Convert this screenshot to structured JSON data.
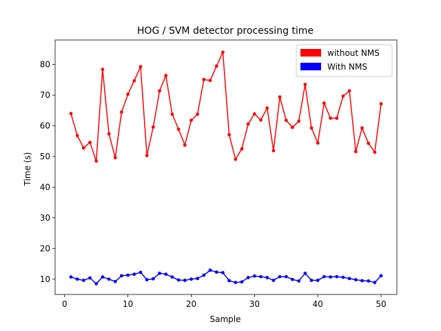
{
  "chart_data": {
    "type": "line",
    "title": "HOG / SVM detector processing time",
    "xlabel": "Sample",
    "ylabel": "Time (s)",
    "xlim": [
      -1.5,
      52.5
    ],
    "ylim": [
      5,
      88
    ],
    "xticks": [
      0,
      10,
      20,
      30,
      40,
      50
    ],
    "yticks": [
      10,
      20,
      30,
      40,
      50,
      60,
      70,
      80
    ],
    "legend_position": "top-right",
    "x": [
      1,
      2,
      3,
      4,
      5,
      6,
      7,
      8,
      9,
      10,
      11,
      12,
      13,
      14,
      15,
      16,
      17,
      18,
      19,
      20,
      21,
      22,
      23,
      24,
      25,
      26,
      27,
      28,
      29,
      30,
      31,
      32,
      33,
      34,
      35,
      36,
      37,
      38,
      39,
      40,
      41,
      42,
      43,
      44,
      45,
      46,
      47,
      48,
      49,
      50
    ],
    "series": [
      {
        "name": "without NMS",
        "color": "#ff0000",
        "values": [
          64.0,
          56.8,
          52.8,
          54.6,
          48.5,
          78.4,
          57.4,
          49.6,
          64.5,
          70.3,
          74.7,
          79.3,
          50.3,
          59.6,
          71.4,
          76.4,
          63.8,
          58.9,
          53.7,
          61.8,
          63.8,
          75.1,
          74.8,
          79.5,
          84.0,
          57.1,
          49.1,
          52.5,
          60.6,
          63.9,
          61.9,
          65.8,
          51.9,
          69.4,
          61.8,
          59.5,
          61.5,
          73.5,
          59.3,
          54.4,
          67.4,
          62.5,
          62.5,
          69.7,
          71.4,
          51.6,
          59.3,
          54.3,
          51.4,
          67.2
        ]
      },
      {
        "name": "With NMS",
        "color": "#0000ff",
        "values": [
          10.7,
          10.0,
          9.6,
          10.4,
          8.5,
          10.7,
          10.0,
          9.2,
          11.1,
          11.3,
          11.6,
          12.2,
          9.8,
          10.1,
          11.9,
          11.6,
          10.7,
          9.7,
          9.6,
          10.0,
          10.2,
          11.3,
          12.9,
          12.3,
          12.1,
          9.5,
          8.9,
          9.1,
          10.5,
          11.0,
          10.8,
          10.5,
          9.6,
          10.8,
          10.8,
          9.9,
          9.4,
          11.9,
          9.6,
          9.6,
          10.8,
          10.7,
          10.8,
          10.6,
          10.2,
          9.8,
          9.5,
          9.4,
          8.9,
          11.1
        ]
      }
    ]
  }
}
